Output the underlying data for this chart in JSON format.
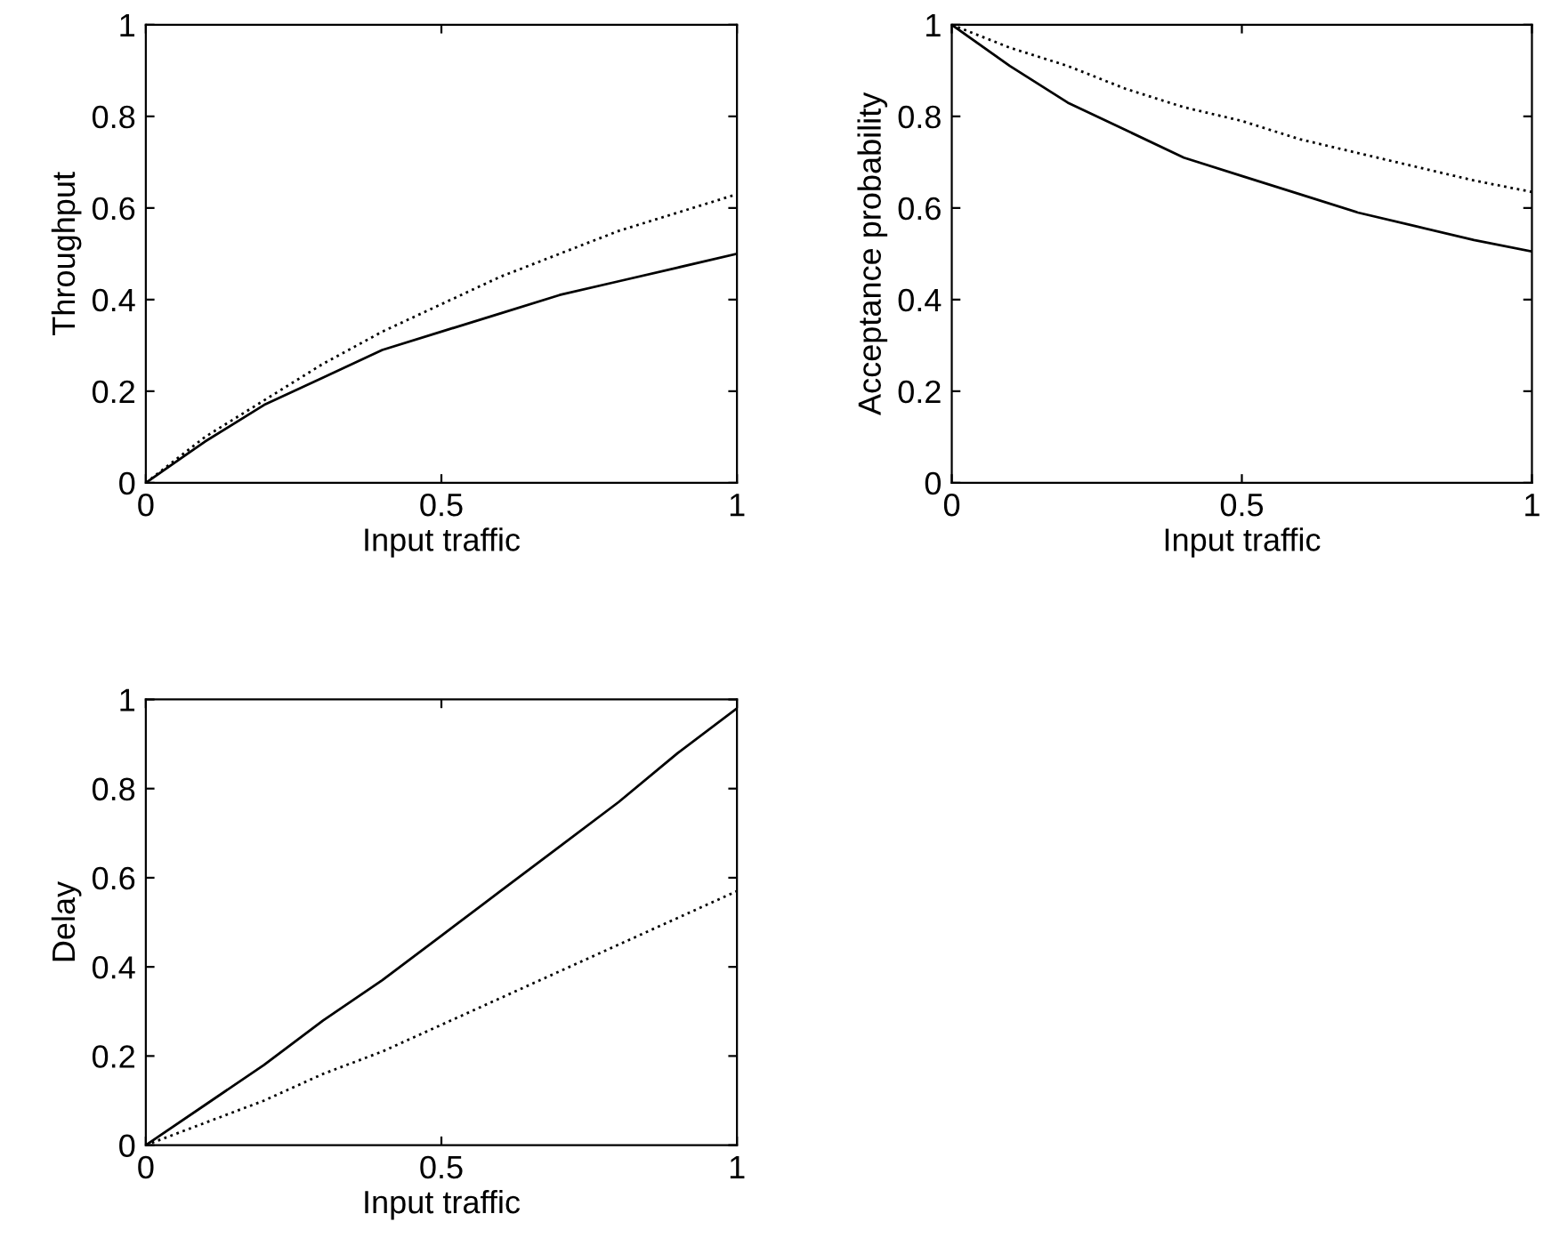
{
  "chart_data": [
    {
      "type": "line",
      "xlabel": "Input traffic",
      "ylabel": "Throughput",
      "x": [
        0,
        0.1,
        0.2,
        0.3,
        0.4,
        0.5,
        0.6,
        0.7,
        0.8,
        0.9,
        1
      ],
      "xlim": [
        0,
        1
      ],
      "ylim": [
        0,
        1
      ],
      "xticks": [
        0,
        0.5,
        1
      ],
      "yticks": [
        0,
        0.2,
        0.4,
        0.6,
        0.8,
        1
      ],
      "grid": false,
      "legend": false,
      "series": [
        {
          "color": "#000000",
          "line_style": "solid",
          "values": [
            0,
            0.09,
            0.17,
            0.23,
            0.29,
            0.33,
            0.37,
            0.41,
            0.44,
            0.47,
            0.5
          ]
        },
        {
          "color": "#000000",
          "line_style": "dotted",
          "values": [
            0,
            0.1,
            0.18,
            0.26,
            0.33,
            0.39,
            0.45,
            0.5,
            0.55,
            0.59,
            0.63
          ]
        }
      ]
    },
    {
      "type": "line",
      "xlabel": "Input traffic",
      "ylabel": "Acceptance probability",
      "x": [
        0,
        0.1,
        0.2,
        0.3,
        0.4,
        0.5,
        0.6,
        0.7,
        0.8,
        0.9,
        1
      ],
      "xlim": [
        0,
        1
      ],
      "ylim": [
        0,
        1
      ],
      "xticks": [
        0,
        0.5,
        1
      ],
      "yticks": [
        0,
        0.2,
        0.4,
        0.6,
        0.8,
        1
      ],
      "grid": false,
      "legend": false,
      "series": [
        {
          "color": "#000000",
          "line_style": "solid",
          "values": [
            1,
            0.91,
            0.83,
            0.77,
            0.71,
            0.67,
            0.63,
            0.59,
            0.56,
            0.53,
            0.505
          ]
        },
        {
          "color": "#000000",
          "line_style": "dotted",
          "values": [
            1,
            0.95,
            0.91,
            0.86,
            0.82,
            0.79,
            0.75,
            0.72,
            0.69,
            0.66,
            0.635
          ]
        }
      ]
    },
    {
      "type": "line",
      "xlabel": "Input traffic",
      "ylabel": "Delay",
      "x": [
        0,
        0.1,
        0.2,
        0.3,
        0.4,
        0.5,
        0.6,
        0.7,
        0.8,
        0.9,
        1
      ],
      "xlim": [
        0,
        1
      ],
      "ylim": [
        0,
        1
      ],
      "xticks": [
        0,
        0.5,
        1
      ],
      "yticks": [
        0,
        0.2,
        0.4,
        0.6,
        0.8,
        1
      ],
      "grid": false,
      "legend": false,
      "series": [
        {
          "color": "#000000",
          "line_style": "solid",
          "values": [
            0,
            0.09,
            0.18,
            0.28,
            0.37,
            0.47,
            0.57,
            0.67,
            0.77,
            0.88,
            0.98
          ]
        },
        {
          "color": "#000000",
          "line_style": "dotted",
          "values": [
            0,
            0.05,
            0.1,
            0.16,
            0.21,
            0.27,
            0.33,
            0.39,
            0.45,
            0.51,
            0.57
          ]
        }
      ]
    }
  ]
}
